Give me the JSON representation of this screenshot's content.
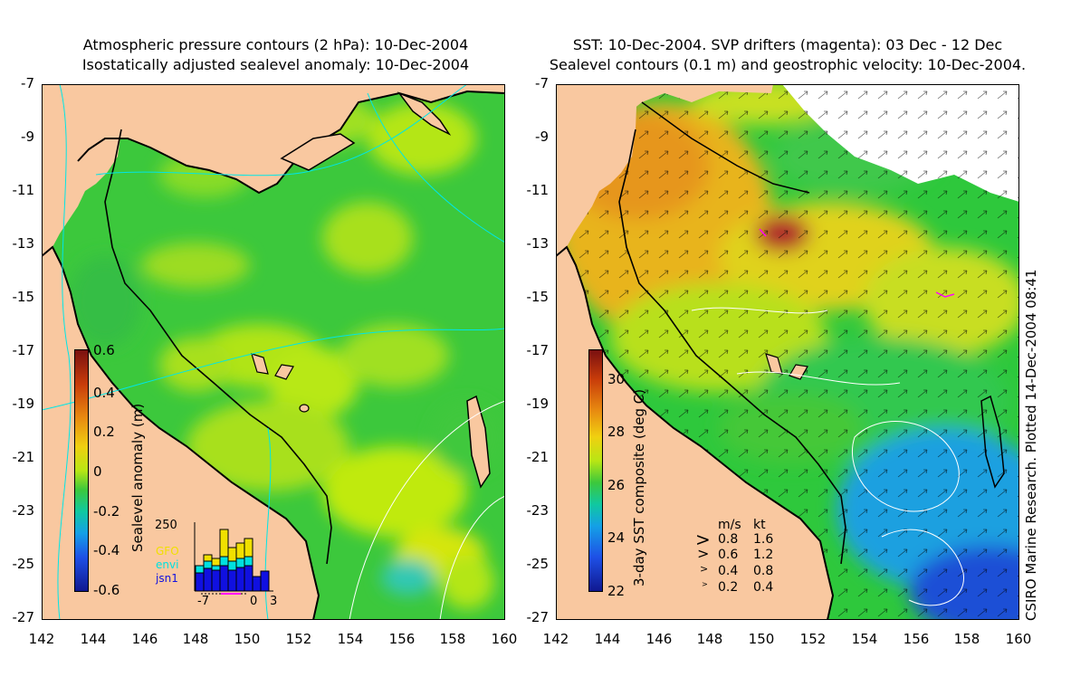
{
  "left_panel": {
    "title_line1": "Atmospheric pressure contours (2 hPa): 10-Dec-2004",
    "title_line2": "Isostatically adjusted sealevel anomaly: 10-Dec-2004",
    "y_ticks": [
      "-7",
      "-9",
      "-11",
      "-13",
      "-15",
      "-17",
      "-19",
      "-21",
      "-23",
      "-25",
      "-27"
    ],
    "x_ticks": [
      "142",
      "144",
      "146",
      "148",
      "150",
      "152",
      "154",
      "156",
      "158",
      "160"
    ],
    "colorbar": {
      "label": "Sealevel anomaly (m)",
      "ticks": [
        "0.6",
        "0.4",
        "0.2",
        "0",
        "-0.2",
        "-0.4",
        "-0.6"
      ]
    },
    "histogram": {
      "ymax_label": "250",
      "x_ticks": [
        "-7",
        "0",
        "3"
      ],
      "satellites": [
        {
          "name": "GFO",
          "color": "#f0e000"
        },
        {
          "name": "envi",
          "color": "#00e0e0"
        },
        {
          "name": "jsn1",
          "color": "#1010e0"
        }
      ]
    }
  },
  "right_panel": {
    "title_line1": "SST: 10-Dec-2004. SVP drifters (magenta): 03 Dec - 12 Dec",
    "title_line2": "Sealevel contours (0.1 m) and geostrophic velocity: 10-Dec-2004.",
    "y_ticks": [
      "-7",
      "-9",
      "-11",
      "-13",
      "-15",
      "-17",
      "-19",
      "-21",
      "-23",
      "-25",
      "-27"
    ],
    "x_ticks": [
      "142",
      "144",
      "146",
      "148",
      "150",
      "152",
      "154",
      "156",
      "158",
      "160"
    ],
    "colorbar": {
      "label": "3-day SST composite (deg C)",
      "ticks": [
        "30",
        "28",
        "26",
        "24",
        "22"
      ]
    },
    "velocity_legend": {
      "header_ms": "m/s",
      "header_kt": "kt",
      "rows": [
        {
          "ms": "0.8",
          "kt": "1.6"
        },
        {
          "ms": "0.6",
          "kt": "1.2"
        },
        {
          "ms": "0.4",
          "kt": "0.8"
        },
        {
          "ms": "0.2",
          "kt": "0.4"
        }
      ]
    }
  },
  "credit": "CSIRO Marine Research. Plotted 14-Dec-2004 08:41",
  "colors": {
    "land": "#f9c8a0",
    "sla_green": "#3cc83c",
    "sla_lime": "#b4e614",
    "sst_orange": "#e6961e",
    "sst_green": "#2ec83c",
    "sst_blue": "#1e6ef0",
    "coast": "#000000",
    "pressure_contour": "#00e6e6"
  }
}
